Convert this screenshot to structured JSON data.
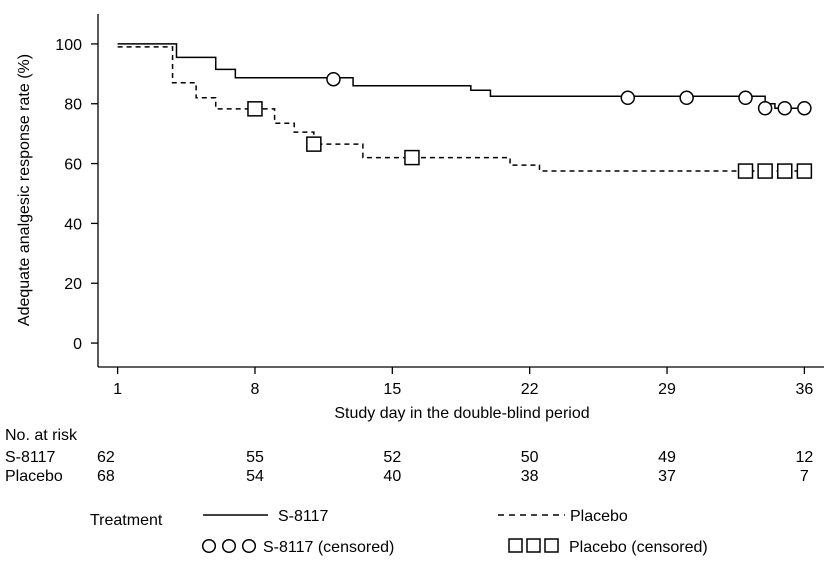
{
  "chart_data": {
    "type": "line",
    "subtype": "kaplan-meier step",
    "xlabel": "Study day in the double-blind period",
    "ylabel": "Adequate analgesic response rate (%)",
    "xlim": [
      0,
      37
    ],
    "ylim": [
      -8,
      110
    ],
    "x_ticks": [
      1,
      8,
      15,
      22,
      29,
      36
    ],
    "y_ticks": [
      0,
      20,
      40,
      60,
      80,
      100
    ],
    "grid": false,
    "series": [
      {
        "name": "S-8117",
        "style": "solid",
        "color": "#000000",
        "steps": [
          [
            1,
            100
          ],
          [
            4,
            95.5
          ],
          [
            6,
            91.5
          ],
          [
            7,
            88.7
          ],
          [
            13,
            86
          ],
          [
            19,
            84.5
          ],
          [
            20,
            82.5
          ],
          [
            34,
            80
          ],
          [
            34.5,
            78.5
          ]
        ],
        "end_x": 36,
        "censored": [
          [
            12,
            88.2
          ],
          [
            27,
            82
          ],
          [
            30,
            82
          ],
          [
            33,
            82
          ],
          [
            34,
            78.5
          ],
          [
            35,
            78.5
          ],
          [
            36,
            78.5
          ]
        ]
      },
      {
        "name": "Placebo",
        "style": "dashed",
        "color": "#000000",
        "steps": [
          [
            1,
            99
          ],
          [
            3.8,
            87
          ],
          [
            5,
            82
          ],
          [
            6,
            78.3
          ],
          [
            9,
            73.5
          ],
          [
            10,
            70.5
          ],
          [
            11,
            66.5
          ],
          [
            13.5,
            62
          ],
          [
            21,
            59.5
          ],
          [
            22.5,
            57.5
          ]
        ],
        "end_x": 36,
        "censored": [
          [
            8,
            78.3
          ],
          [
            11,
            66.5
          ],
          [
            16,
            62
          ],
          [
            33,
            57.5
          ],
          [
            34,
            57.5
          ],
          [
            35,
            57.5
          ],
          [
            36,
            57.5
          ]
        ]
      }
    ]
  },
  "risk_table": {
    "title": "No. at risk",
    "rows": [
      {
        "label": "S-8117",
        "values": [
          "62",
          "55",
          "52",
          "50",
          "49",
          "12"
        ]
      },
      {
        "label": "Placebo",
        "values": [
          "68",
          "54",
          "40",
          "38",
          "37",
          "7"
        ]
      }
    ]
  },
  "legend": {
    "title": "Treatment",
    "items": [
      {
        "label": "S-8117"
      },
      {
        "label": "Placebo"
      },
      {
        "label": "S-8117 (censored)"
      },
      {
        "label": "Placebo (censored)"
      }
    ]
  }
}
